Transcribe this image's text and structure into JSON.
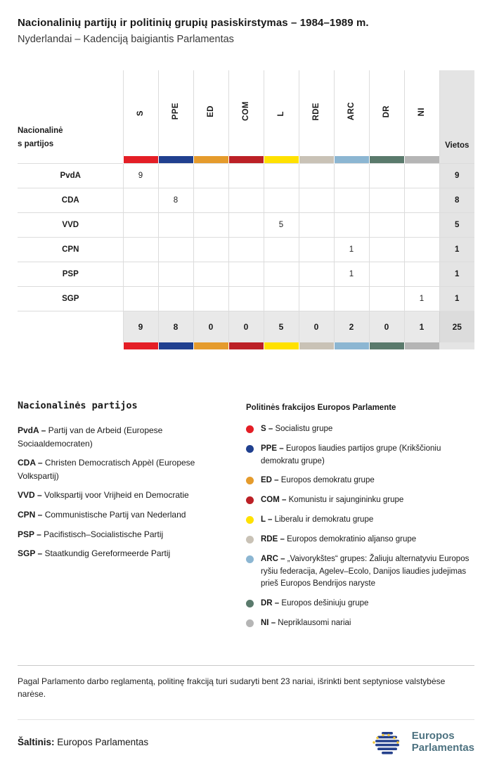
{
  "header": {
    "title": "Nacionalinių partijų ir politinių grupių pasiskirstymas – 1984–1989 m.",
    "subtitle": "Nyderlandai – Kadenciją baigiantis Parlamentas"
  },
  "table": {
    "row_header_label": "Nacionalinės partijos",
    "seats_label": "Vietos",
    "columns": [
      {
        "id": "S",
        "color": "#e41e26"
      },
      {
        "id": "PPE",
        "color": "#20408f"
      },
      {
        "id": "ED",
        "color": "#e59b2c"
      },
      {
        "id": "COM",
        "color": "#bc2026"
      },
      {
        "id": "L",
        "color": "#ffe100"
      },
      {
        "id": "RDE",
        "color": "#c9c2b6"
      },
      {
        "id": "ARC",
        "color": "#8cb6d2"
      },
      {
        "id": "DR",
        "color": "#5a7a6c"
      },
      {
        "id": "NI",
        "color": "#b5b5b5"
      }
    ],
    "rows": [
      {
        "party": "PvdA",
        "cells": [
          "9",
          "",
          "",
          "",
          "",
          "",
          "",
          "",
          ""
        ],
        "seats": "9"
      },
      {
        "party": "CDA",
        "cells": [
          "",
          "8",
          "",
          "",
          "",
          "",
          "",
          "",
          ""
        ],
        "seats": "8"
      },
      {
        "party": "VVD",
        "cells": [
          "",
          "",
          "",
          "",
          "5",
          "",
          "",
          "",
          ""
        ],
        "seats": "5"
      },
      {
        "party": "CPN",
        "cells": [
          "",
          "",
          "",
          "",
          "",
          "",
          "1",
          "",
          ""
        ],
        "seats": "1"
      },
      {
        "party": "PSP",
        "cells": [
          "",
          "",
          "",
          "",
          "",
          "",
          "1",
          "",
          ""
        ],
        "seats": "1"
      },
      {
        "party": "SGP",
        "cells": [
          "",
          "",
          "",
          "",
          "",
          "",
          "",
          "",
          "1"
        ],
        "seats": "1"
      }
    ],
    "totals": {
      "cells": [
        "9",
        "8",
        "0",
        "0",
        "5",
        "0",
        "2",
        "0",
        "1"
      ],
      "seats": "25"
    }
  },
  "chart_data": {
    "type": "table",
    "title": "Nacionalinių partijų ir politinių grupių pasiskirstymas – 1984–1989 m.",
    "subtitle": "Nyderlandai – Kadenciją baigiantis Parlamentas",
    "columns": [
      "Nacionalinės partijos",
      "S",
      "PPE",
      "ED",
      "COM",
      "L",
      "RDE",
      "ARC",
      "DR",
      "NI",
      "Vietos"
    ],
    "rows": [
      [
        "PvdA",
        9,
        null,
        null,
        null,
        null,
        null,
        null,
        null,
        null,
        9
      ],
      [
        "CDA",
        null,
        8,
        null,
        null,
        null,
        null,
        null,
        null,
        null,
        8
      ],
      [
        "VVD",
        null,
        null,
        null,
        null,
        5,
        null,
        null,
        null,
        null,
        5
      ],
      [
        "CPN",
        null,
        null,
        null,
        null,
        null,
        null,
        1,
        null,
        null,
        1
      ],
      [
        "PSP",
        null,
        null,
        null,
        null,
        null,
        null,
        1,
        null,
        null,
        1
      ],
      [
        "SGP",
        null,
        null,
        null,
        null,
        null,
        null,
        null,
        null,
        1,
        1
      ]
    ],
    "totals": [
      9,
      8,
      0,
      0,
      5,
      0,
      2,
      0,
      1,
      25
    ]
  },
  "legend_parties": {
    "title": "Nacionalinės partijos",
    "items": [
      {
        "abbr": "PvdA",
        "desc": "Partij van de Arbeid (Europese Sociaaldemocraten)"
      },
      {
        "abbr": "CDA",
        "desc": "Christen Democratisch Appèl (Europese Volkspartij)"
      },
      {
        "abbr": "VVD",
        "desc": "Volkspartij voor Vrijheid en Democratie"
      },
      {
        "abbr": "CPN",
        "desc": "Communistische Partij van Nederland"
      },
      {
        "abbr": "PSP",
        "desc": "Pacifistisch–Socialistische Partij"
      },
      {
        "abbr": "SGP",
        "desc": "Staatkundig Gereformeerde Partij"
      }
    ]
  },
  "legend_groups": {
    "title": "Politinės frakcijos Europos Parlamente",
    "items": [
      {
        "abbr": "S",
        "color": "#e41e26",
        "desc": "Socialistu grupe"
      },
      {
        "abbr": "PPE",
        "color": "#20408f",
        "desc": "Europos liaudies partijos grupe (Krikščioniu demokratu grupe)"
      },
      {
        "abbr": "ED",
        "color": "#e59b2c",
        "desc": "Europos demokratu grupe"
      },
      {
        "abbr": "COM",
        "color": "#bc2026",
        "desc": "Komunistu ir sajungininku grupe"
      },
      {
        "abbr": "L",
        "color": "#ffe100",
        "desc": "Liberalu ir demokratu grupe"
      },
      {
        "abbr": "RDE",
        "color": "#c9c2b6",
        "desc": "Europos demokratinio aljanso grupe"
      },
      {
        "abbr": "ARC",
        "color": "#8cb6d2",
        "desc": "„Vaivorykštes“ grupes: Žaliuju alternatyviu Europos ryšiu federacija, Agelev–Ecolo, Danijos liaudies judejimas prieš Europos Bendrijos naryste"
      },
      {
        "abbr": "DR",
        "color": "#5a7a6c",
        "desc": "Europos dešiniuju grupe"
      },
      {
        "abbr": "NI",
        "color": "#b5b5b5",
        "desc": "Nepriklausomi nariai"
      }
    ]
  },
  "footnote": "Pagal Parlamento darbo reglamentą, politinę frakciją turi sudaryti bent 23 nariai, išrinkti bent septyniose valstybėse narėse.",
  "source": {
    "label": "Šaltinis:",
    "value": "Europos Parlamentas"
  },
  "logo": {
    "line1": "Europos",
    "line2": "Parlamentas"
  }
}
